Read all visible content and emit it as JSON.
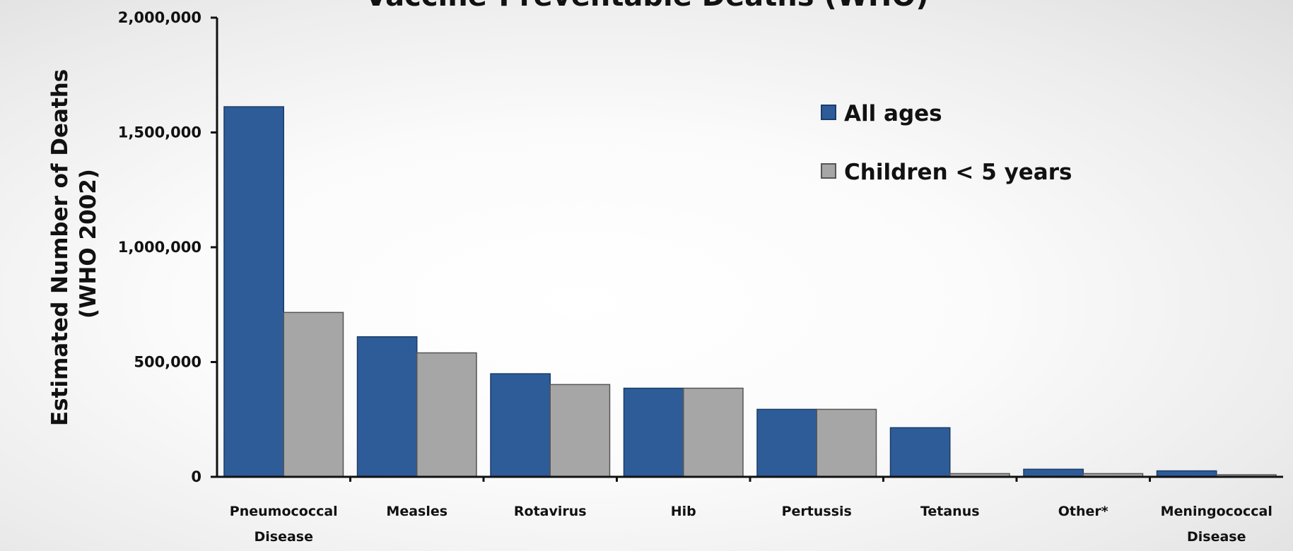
{
  "chart_data": {
    "type": "bar",
    "title": "Vaccine-Preventable Deaths (WHO)",
    "ylabel": [
      "Estimated Number of Deaths",
      "(WHO 2002)"
    ],
    "xlabel": "",
    "ylim": [
      0,
      2000000
    ],
    "yticks": [
      0,
      500000,
      1000000,
      1500000,
      2000000
    ],
    "ytick_labels": [
      "0",
      "500,000",
      "1,000,000",
      "1,500,000",
      "2,000,000"
    ],
    "categories": [
      [
        "Pneumococcal",
        "Disease"
      ],
      [
        "Measles"
      ],
      [
        "Rotavirus"
      ],
      [
        "Hib"
      ],
      [
        "Pertussis"
      ],
      [
        "Tetanus"
      ],
      [
        "Other*"
      ],
      [
        "Meningococcal",
        "Disease"
      ]
    ],
    "series": [
      {
        "name": "All ages",
        "color": "#2e5c98",
        "values": [
          1612000,
          610000,
          449000,
          386000,
          294000,
          214000,
          33000,
          26000
        ]
      },
      {
        "name": "Children < 5 years",
        "color": "#a6a6a6",
        "values": [
          716000,
          540000,
          402000,
          386000,
          294000,
          14000,
          14000,
          9000
        ]
      }
    ],
    "legend_position": "top-right",
    "grid": false
  }
}
